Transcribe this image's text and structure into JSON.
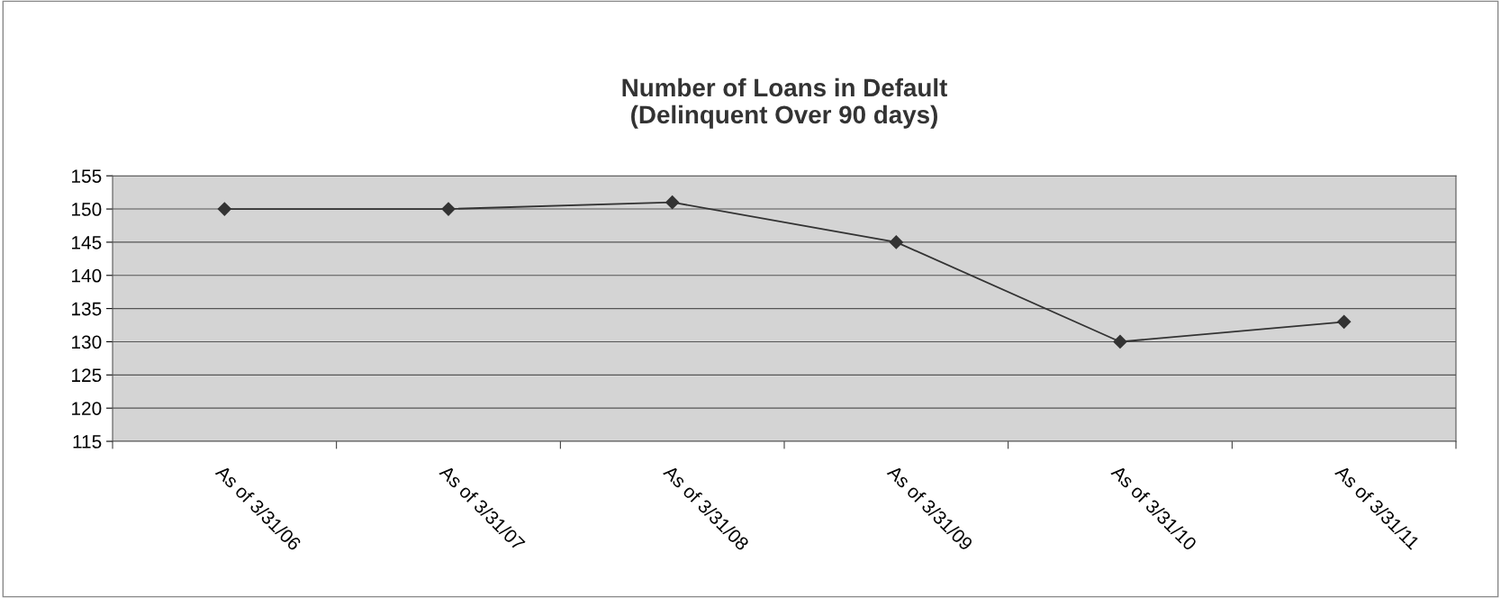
{
  "chart_data": {
    "type": "line",
    "title": "Number of Loans in Default\n(Delinquent Over 90 days)",
    "categories": [
      "As of 3/31/06",
      "As of 3/31/07",
      "As of 3/31/08",
      "As of 3/31/09",
      "As of 3/31/10",
      "As of 3/31/11"
    ],
    "series": [
      {
        "color": "#333333",
        "values": [
          150,
          150,
          151,
          145,
          130,
          133
        ]
      }
    ],
    "ylim": [
      115,
      155
    ],
    "yticks": [
      115,
      120,
      125,
      130,
      135,
      140,
      145,
      150,
      155
    ],
    "grid": "y",
    "marker": "diamond",
    "line_style": "solid",
    "legend": false
  }
}
